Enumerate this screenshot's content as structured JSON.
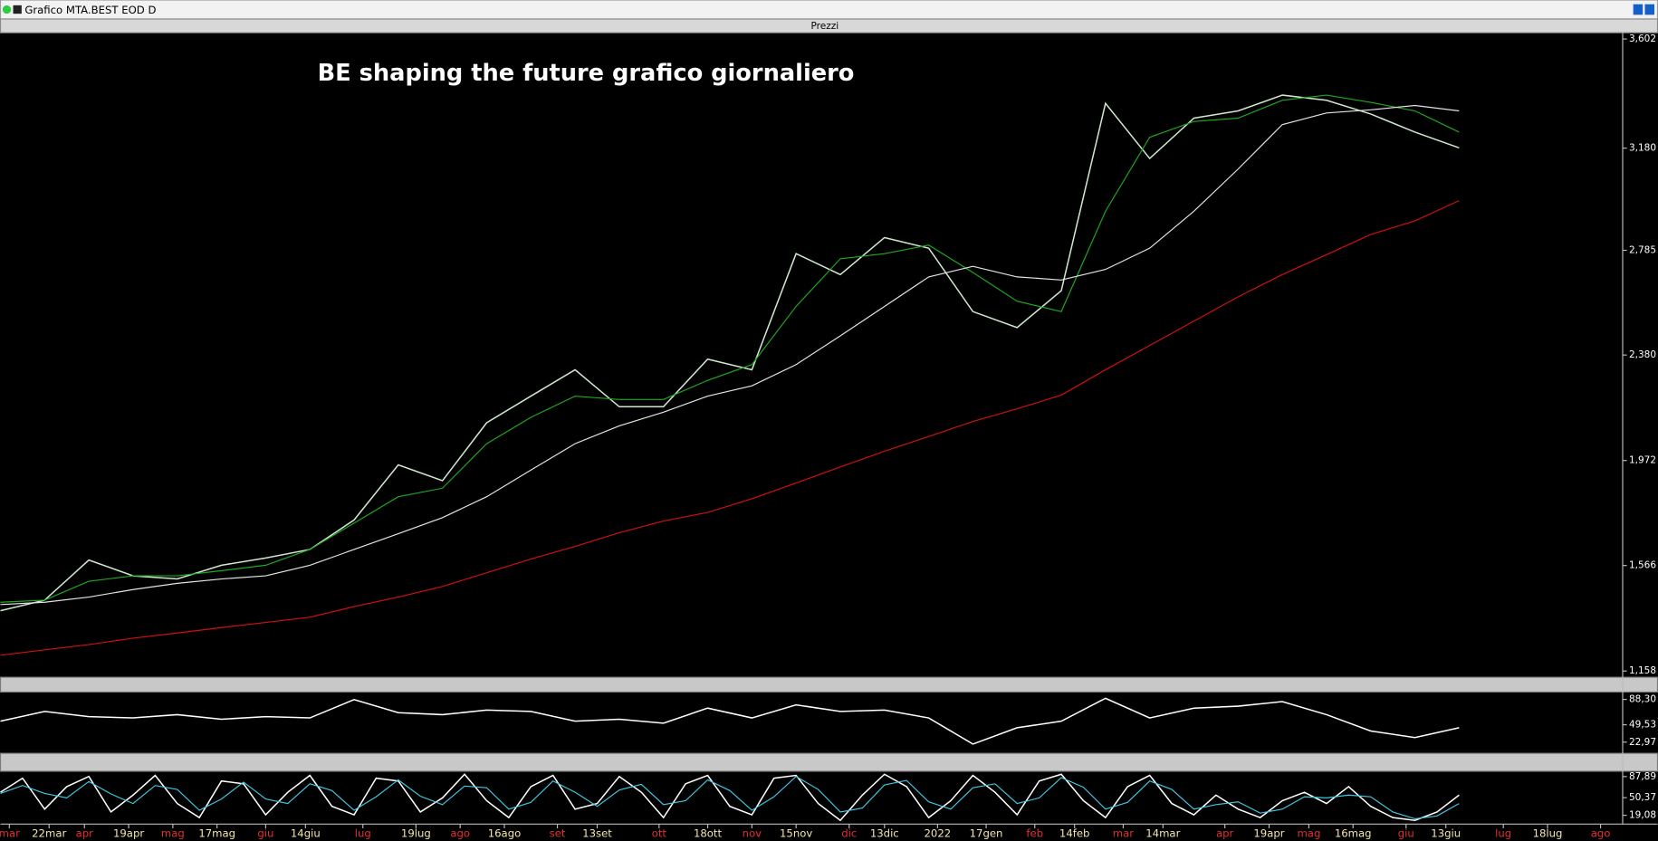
{
  "window_title": "Grafico MTA.BEST EOD D",
  "panel_title": "Prezzi",
  "chart_data": [
    {
      "type": "line",
      "title": "BE shaping the future grafico giornaliero",
      "x": [
        0,
        10,
        20,
        30,
        40,
        50,
        60,
        70,
        80,
        90,
        100,
        110,
        120,
        130,
        140,
        150,
        160,
        170,
        180,
        190,
        200,
        210,
        220,
        230,
        240,
        250,
        260,
        270,
        280,
        290,
        300,
        310,
        320,
        330
      ],
      "xlim": [
        0,
        367
      ],
      "xticks": [
        {
          "value": 2,
          "label": "mar"
        },
        {
          "value": 11,
          "label": "22mar"
        },
        {
          "value": 19,
          "label": "apr"
        },
        {
          "value": 29,
          "label": "19apr"
        },
        {
          "value": 39,
          "label": "mag"
        },
        {
          "value": 49,
          "label": "17mag"
        },
        {
          "value": 60,
          "label": "giu"
        },
        {
          "value": 69,
          "label": "14giu"
        },
        {
          "value": 82,
          "label": "lug"
        },
        {
          "value": 94,
          "label": "19lug"
        },
        {
          "value": 104,
          "label": "ago"
        },
        {
          "value": 114,
          "label": "16ago"
        },
        {
          "value": 126,
          "label": "set"
        },
        {
          "value": 135,
          "label": "13set"
        },
        {
          "value": 149,
          "label": "ott"
        },
        {
          "value": 160,
          "label": "18ott"
        },
        {
          "value": 170,
          "label": "nov"
        },
        {
          "value": 180,
          "label": "15nov"
        },
        {
          "value": 192,
          "label": "dic"
        },
        {
          "value": 200,
          "label": "13dic"
        },
        {
          "value": 212,
          "label": "2022"
        },
        {
          "value": 223,
          "label": "17gen"
        },
        {
          "value": 234,
          "label": "feb"
        },
        {
          "value": 243,
          "label": "14feb"
        },
        {
          "value": 254,
          "label": "mar"
        },
        {
          "value": 263,
          "label": "14mar"
        },
        {
          "value": 277,
          "label": "apr"
        },
        {
          "value": 287,
          "label": "19apr"
        },
        {
          "value": 296,
          "label": "mag"
        },
        {
          "value": 306,
          "label": "16mag"
        },
        {
          "value": 318,
          "label": "giu"
        },
        {
          "value": 327,
          "label": "13giu"
        },
        {
          "value": 340,
          "label": "lug"
        },
        {
          "value": 350,
          "label": "18lug"
        },
        {
          "value": 362,
          "label": "ago"
        }
      ],
      "ylim": [
        1.138,
        3.618
      ],
      "yticks": [
        {
          "value": 1.158,
          "label": "1,158"
        },
        {
          "value": 1.566,
          "label": "1,566"
        },
        {
          "value": 1.972,
          "label": "1,972"
        },
        {
          "value": 2.38,
          "label": "2,380"
        },
        {
          "value": 2.785,
          "label": "2,785"
        },
        {
          "value": 3.18,
          "label": "3,180"
        },
        {
          "value": 3.602,
          "label": "3,602"
        }
      ],
      "series": [
        {
          "color": "#cfe8cf",
          "values": [
            1.391,
            1.432,
            1.587,
            1.526,
            1.514,
            1.567,
            1.595,
            1.628,
            1.742,
            1.955,
            1.894,
            2.118,
            2.221,
            2.323,
            2.18,
            2.18,
            2.364,
            2.323,
            2.772,
            2.691,
            2.834,
            2.793,
            2.548,
            2.486,
            2.629,
            3.353,
            3.14,
            3.296,
            3.324,
            3.385,
            3.365,
            3.312,
            3.242,
            3.181
          ]
        },
        {
          "color": "#1fa81f",
          "values": [
            1.424,
            1.432,
            1.505,
            1.526,
            1.526,
            1.546,
            1.567,
            1.628,
            1.73,
            1.832,
            1.865,
            2.037,
            2.139,
            2.221,
            2.208,
            2.208,
            2.282,
            2.343,
            2.568,
            2.752,
            2.772,
            2.805,
            2.699,
            2.588,
            2.548,
            2.936,
            3.222,
            3.283,
            3.296,
            3.365,
            3.385,
            3.357,
            3.324,
            3.242
          ]
        },
        {
          "color": "#e4e4e4",
          "values": [
            1.415,
            1.424,
            1.444,
            1.473,
            1.497,
            1.514,
            1.526,
            1.567,
            1.628,
            1.689,
            1.751,
            1.832,
            1.935,
            2.037,
            2.106,
            2.159,
            2.221,
            2.261,
            2.343,
            2.454,
            2.568,
            2.682,
            2.723,
            2.682,
            2.67,
            2.711,
            2.793,
            2.936,
            3.099,
            3.271,
            3.316,
            3.328,
            3.345,
            3.324
          ]
        },
        {
          "color": "#d01010",
          "values": [
            1.219,
            1.24,
            1.26,
            1.285,
            1.305,
            1.326,
            1.346,
            1.366,
            1.407,
            1.444,
            1.485,
            1.538,
            1.591,
            1.64,
            1.693,
            1.738,
            1.771,
            1.824,
            1.885,
            1.947,
            2.008,
            2.065,
            2.123,
            2.172,
            2.225,
            2.323,
            2.417,
            2.511,
            2.605,
            2.691,
            2.768,
            2.846,
            2.899,
            2.977
          ]
        }
      ]
    },
    {
      "type": "line",
      "x": [
        0,
        10,
        20,
        30,
        40,
        50,
        60,
        70,
        80,
        90,
        100,
        110,
        120,
        130,
        140,
        150,
        160,
        170,
        180,
        190,
        200,
        210,
        220,
        230,
        240,
        250,
        260,
        270,
        280,
        290,
        300,
        310,
        320,
        330
      ],
      "xlim": [
        0,
        367
      ],
      "ylim": [
        7.5,
        98
      ],
      "yticks": [
        {
          "value": 22.97,
          "label": "22,97"
        },
        {
          "value": 49.53,
          "label": "49,53"
        },
        {
          "value": 88.3,
          "label": "88,30"
        }
      ],
      "series": [
        {
          "color": "#ffffff",
          "values": [
            55,
            70,
            62,
            60,
            65,
            58,
            62,
            60,
            88,
            68,
            65,
            72,
            70,
            55,
            58,
            52,
            75,
            60,
            80,
            70,
            72,
            60,
            20,
            45,
            55,
            90,
            60,
            75,
            78,
            85,
            65,
            40,
            30,
            45
          ]
        }
      ]
    },
    {
      "type": "line",
      "x": [
        0,
        5,
        10,
        15,
        20,
        25,
        30,
        35,
        40,
        45,
        50,
        55,
        60,
        65,
        70,
        75,
        80,
        85,
        90,
        95,
        100,
        105,
        110,
        115,
        120,
        125,
        130,
        135,
        140,
        145,
        150,
        155,
        160,
        165,
        170,
        175,
        180,
        185,
        190,
        195,
        200,
        205,
        210,
        215,
        220,
        225,
        230,
        235,
        240,
        245,
        250,
        255,
        260,
        265,
        270,
        275,
        280,
        285,
        290,
        295,
        300,
        305,
        310,
        315,
        320,
        325,
        330
      ],
      "xlim": [
        0,
        367
      ],
      "ylim": [
        5.35,
        95.4
      ],
      "yticks": [
        {
          "value": 19.08,
          "label": "19,08"
        },
        {
          "value": 50.37,
          "label": "50,37"
        },
        {
          "value": 87.89,
          "label": "87,89"
        }
      ],
      "series": [
        {
          "color": "#ffffff",
          "values": [
            60,
            85,
            30,
            70,
            88,
            25,
            55,
            90,
            40,
            15,
            80,
            75,
            20,
            60,
            90,
            35,
            20,
            85,
            80,
            25,
            50,
            92,
            45,
            15,
            70,
            90,
            30,
            40,
            88,
            60,
            15,
            75,
            90,
            35,
            20,
            85,
            90,
            40,
            10,
            55,
            92,
            70,
            15,
            45,
            90,
            60,
            20,
            80,
            92,
            45,
            15,
            70,
            90,
            40,
            20,
            55,
            30,
            15,
            45,
            60,
            40,
            70,
            35,
            15,
            10,
            25,
            55
          ]
        },
        {
          "color": "#3fc6e0",
          "values": [
            58,
            72,
            58,
            50,
            79,
            57,
            40,
            72,
            65,
            28,
            48,
            78,
            48,
            40,
            75,
            63,
            28,
            52,
            82,
            53,
            38,
            71,
            68,
            30,
            42,
            80,
            60,
            35,
            64,
            74,
            38,
            45,
            82,
            63,
            28,
            52,
            88,
            65,
            25,
            32,
            73,
            81,
            43,
            30,
            68,
            75,
            40,
            50,
            86,
            69,
            30,
            42,
            80,
            65,
            30,
            38,
            43,
            23,
            30,
            52,
            50,
            55,
            52,
            25,
            13,
            18,
            40
          ]
        }
      ]
    }
  ]
}
